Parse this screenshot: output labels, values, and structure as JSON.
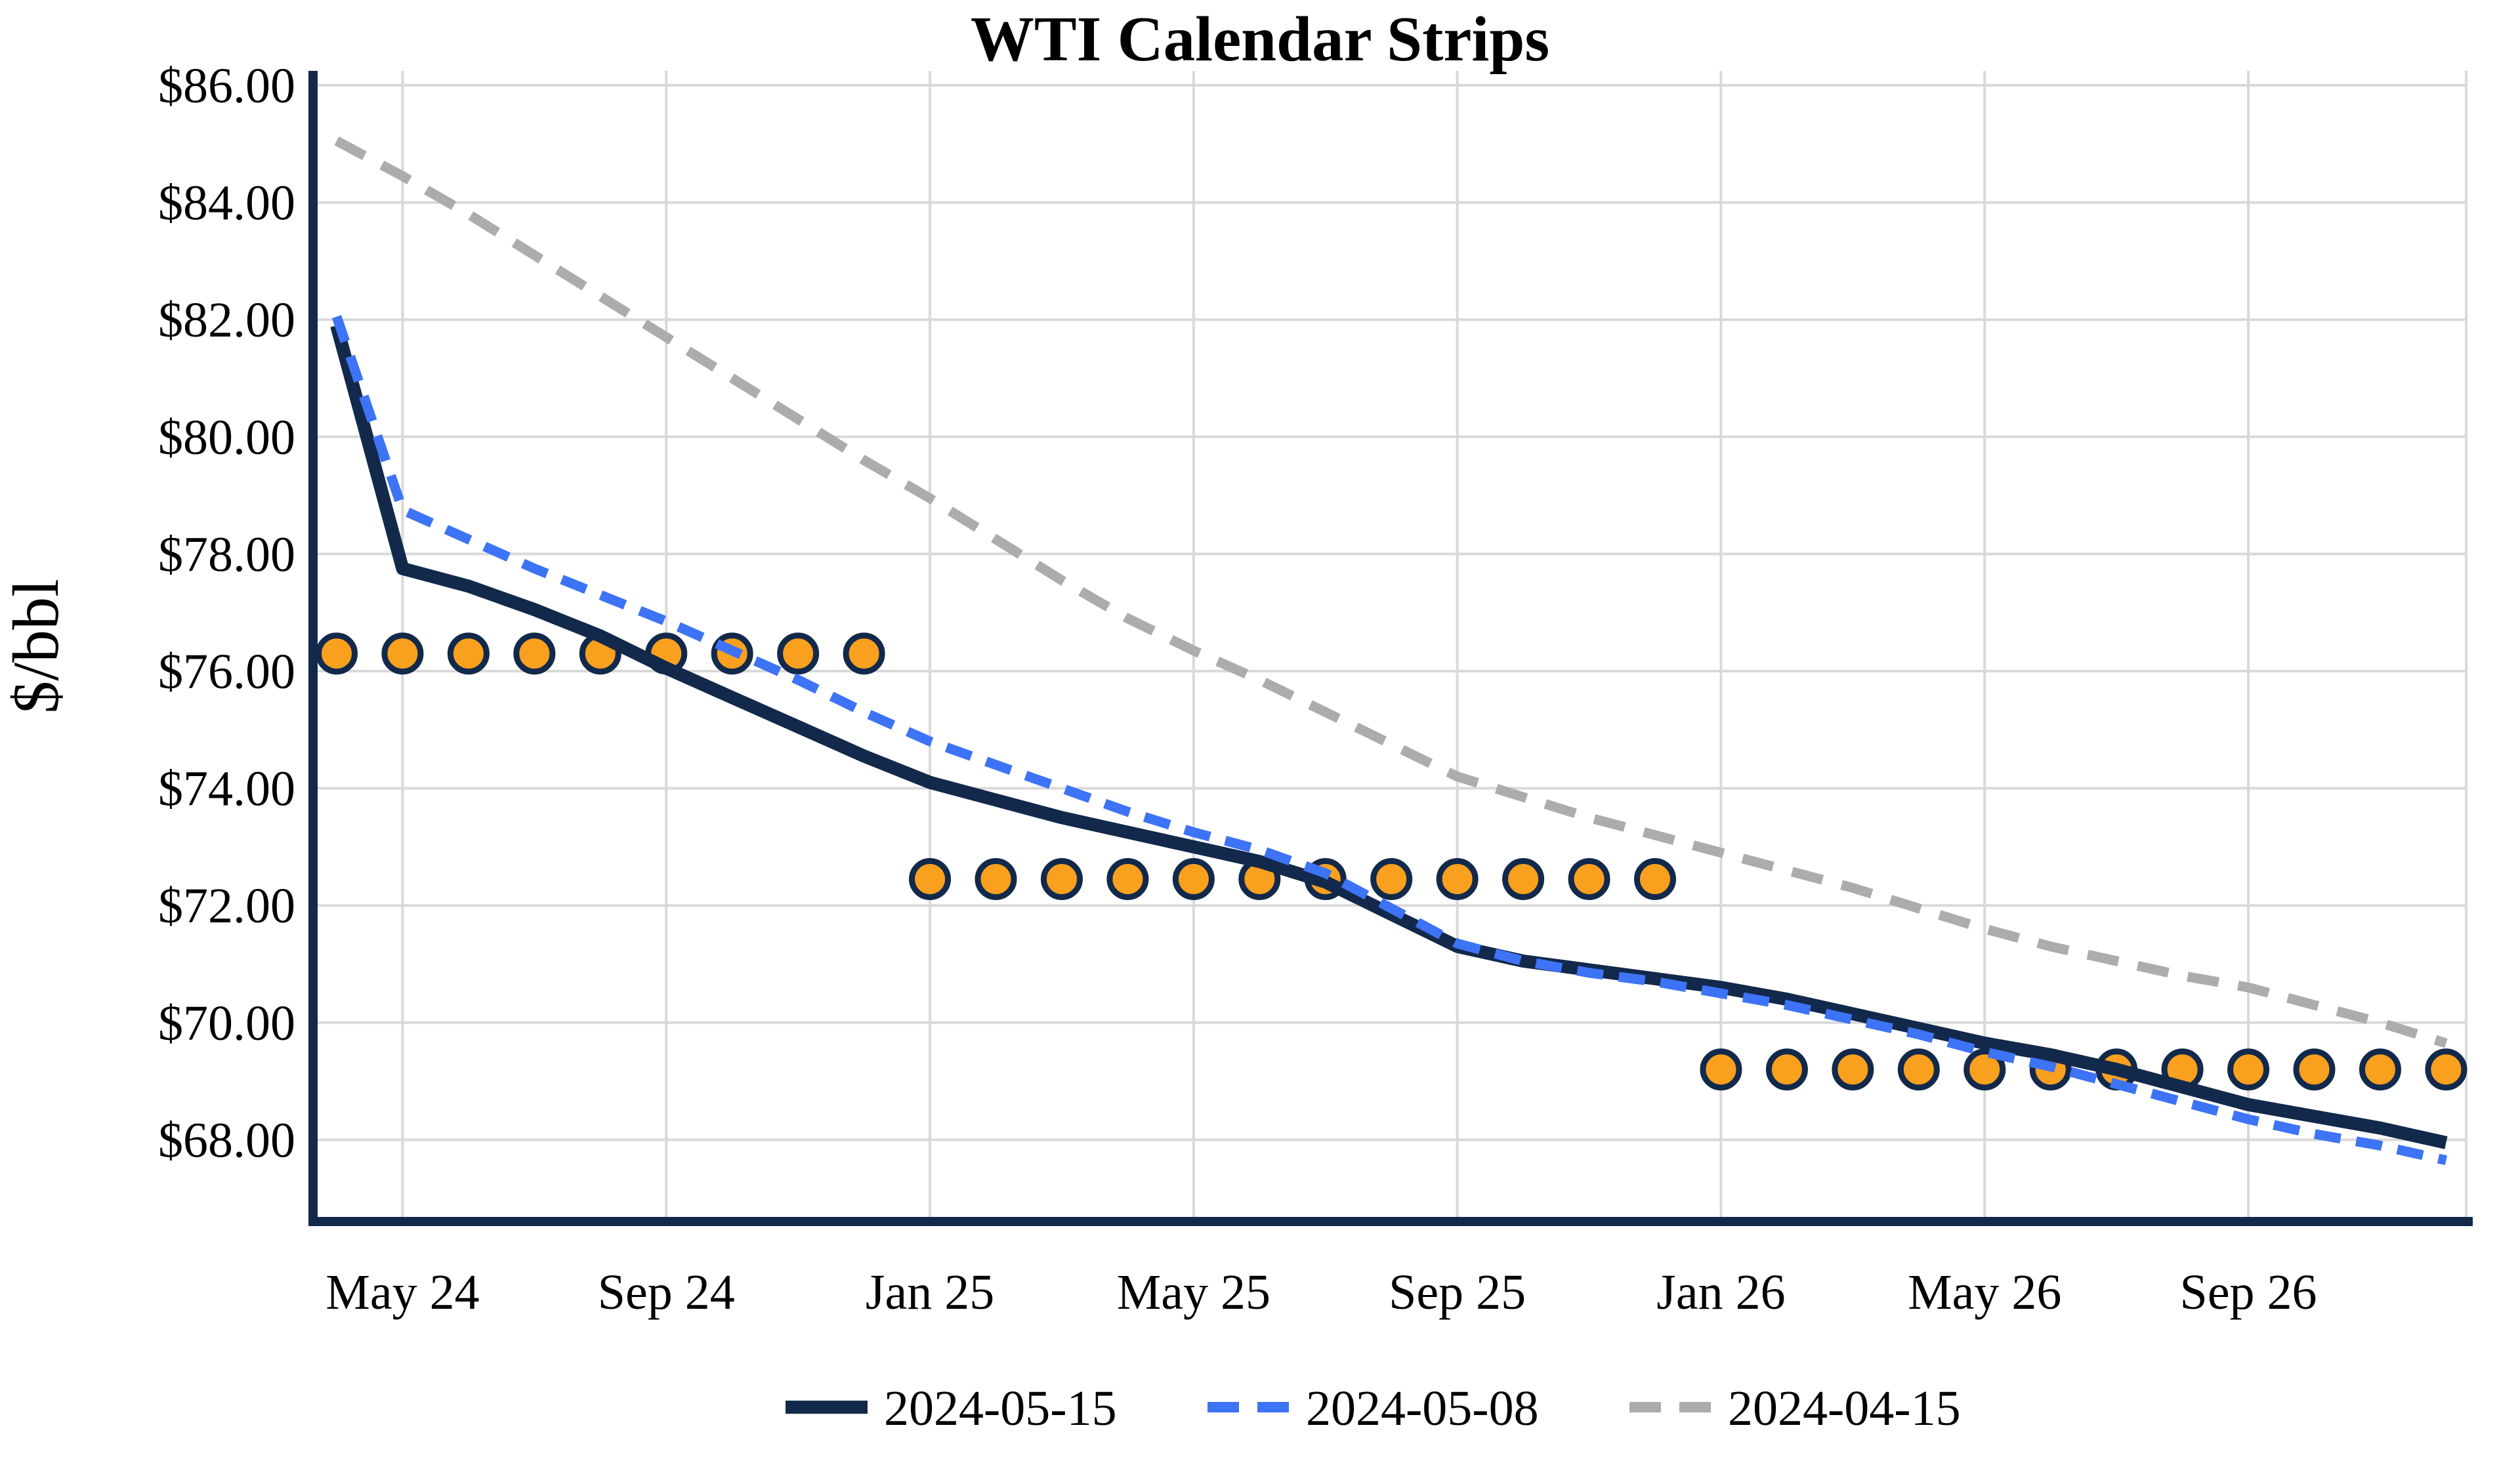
{
  "chart_data": {
    "type": "line",
    "title": "WTI Calendar Strips",
    "ylabel": "$/bbl",
    "grid": true,
    "legend_position": "bottom-center",
    "background_color": "#FFFFFF",
    "colors": {
      "axis_spine": "#12294B",
      "gridline": "#D9D9D9",
      "text": "#000000",
      "marker_fill": "#F9A01E",
      "marker_edge": "#12294B"
    },
    "y_axis": {
      "ticks": [
        {
          "label": "$86.00",
          "value": 86
        },
        {
          "label": "$84.00",
          "value": 84
        },
        {
          "label": "$82.00",
          "value": 82
        },
        {
          "label": "$80.00",
          "value": 80
        },
        {
          "label": "$78.00",
          "value": 78
        },
        {
          "label": "$76.00",
          "value": 76
        },
        {
          "label": "$74.00",
          "value": 74
        },
        {
          "label": "$72.00",
          "value": 72
        },
        {
          "label": "$70.00",
          "value": 70
        },
        {
          "label": "$68.00",
          "value": 68
        }
      ],
      "ylim": [
        66.5,
        86.3
      ]
    },
    "x_axis": {
      "n_points": 33,
      "note": "monthly contract points, Apr 2024 through Dec 2026",
      "ticks": [
        {
          "label": "May 24",
          "month": 1
        },
        {
          "label": "Sep 24",
          "month": 5
        },
        {
          "label": "Jan 25",
          "month": 9
        },
        {
          "label": "May 25",
          "month": 13
        },
        {
          "label": "Sep 25",
          "month": 17
        },
        {
          "label": "Jan 26",
          "month": 21
        },
        {
          "label": "May 26",
          "month": 25
        },
        {
          "label": "Sep 26",
          "month": 29
        }
      ]
    },
    "series": [
      {
        "name": "2024-05-15",
        "style": "solid",
        "color": "#12294B",
        "stroke_width": 20,
        "values": [
          81.9,
          77.75,
          77.45,
          77.05,
          76.6,
          76.05,
          75.55,
          75.05,
          74.55,
          74.1,
          73.8,
          73.5,
          73.25,
          73.0,
          72.75,
          72.4,
          71.85,
          71.3,
          71.05,
          70.9,
          70.75,
          70.6,
          70.4,
          70.15,
          69.9,
          69.65,
          69.45,
          69.2,
          68.9,
          68.6,
          68.4,
          68.2,
          67.95
        ]
      },
      {
        "name": "2024-05-08",
        "style": "dashed",
        "color": "#3D73F5",
        "stroke_width": 15,
        "dash": "40 24",
        "values": [
          82.05,
          78.75,
          78.25,
          77.75,
          77.3,
          76.85,
          76.35,
          75.85,
          75.3,
          74.8,
          74.4,
          74.0,
          73.6,
          73.25,
          72.95,
          72.55,
          71.95,
          71.35,
          71.05,
          70.85,
          70.7,
          70.5,
          70.3,
          70.05,
          69.8,
          69.5,
          69.25,
          68.95,
          68.65,
          68.35,
          68.1,
          67.9,
          67.65
        ]
      },
      {
        "name": "2024-04-15",
        "style": "dashed",
        "color": "#ACACAC",
        "stroke_width": 15,
        "dash": "48 30",
        "values": [
          85.05,
          84.45,
          83.8,
          83.1,
          82.4,
          81.7,
          81.0,
          80.3,
          79.6,
          78.95,
          78.25,
          77.55,
          76.9,
          76.35,
          75.85,
          75.3,
          74.75,
          74.2,
          73.85,
          73.5,
          73.2,
          72.9,
          72.6,
          72.3,
          71.95,
          71.6,
          71.3,
          71.05,
          70.8,
          70.6,
          70.3,
          70.0,
          69.65
        ]
      }
    ],
    "strips": [
      {
        "value": 76.3,
        "start_month": 0,
        "end_month": 8
      },
      {
        "value": 72.45,
        "start_month": 9,
        "end_month": 20
      },
      {
        "value": 69.2,
        "start_month": 21,
        "end_month": 32
      }
    ]
  }
}
